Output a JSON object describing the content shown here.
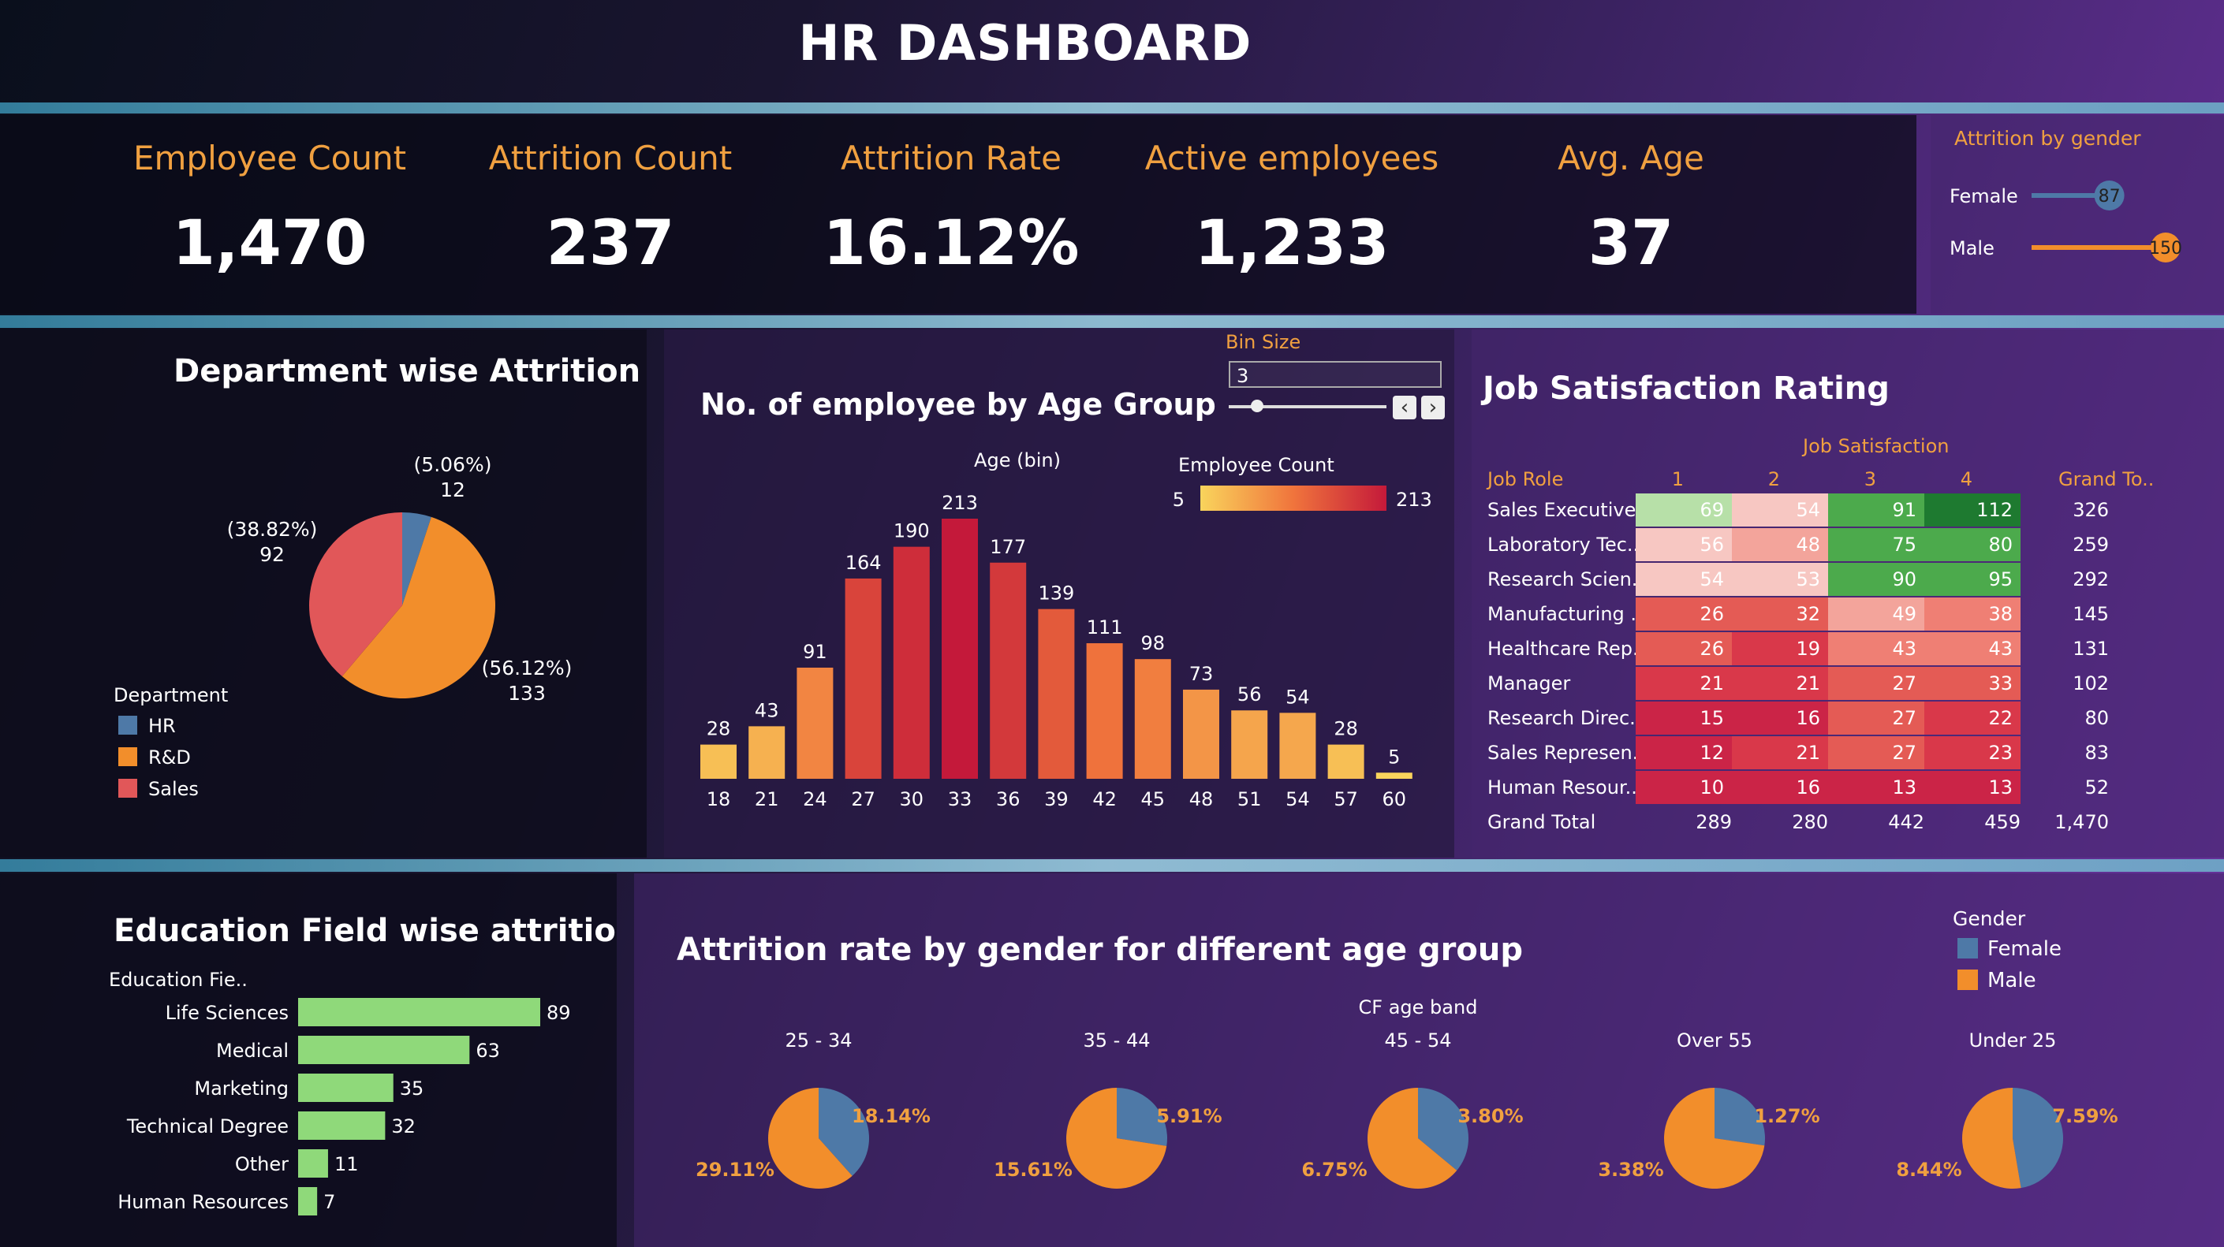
{
  "dashboard_title": "HR DASHBOARD",
  "kpis": [
    {
      "label": "Employee Count",
      "value": "1,470"
    },
    {
      "label": "Attrition Count",
      "value": "237"
    },
    {
      "label": "Attrition Rate",
      "value": "16.12%"
    },
    {
      "label": "Active employees",
      "value": "1,233"
    },
    {
      "label": "Avg. Age",
      "value": "37"
    }
  ],
  "colors": {
    "hr": "#4e79a7",
    "rd": "#f28e2b",
    "sales": "#e15759",
    "female": "#4e79a7",
    "male": "#f28e2b",
    "edu_bar": "#8fd97a",
    "kpi_label": "#f0a040"
  },
  "chart_data": [
    {
      "type": "bar",
      "id": "attrition_by_gender",
      "title": "Attrition  by gender",
      "categories": [
        "Female",
        "Male"
      ],
      "values": [
        87,
        150
      ],
      "max": 150
    },
    {
      "type": "pie",
      "id": "department_attrition",
      "title": "Department wise Attrition",
      "legend_title": "Department",
      "categories": [
        "HR",
        "R&D",
        "Sales"
      ],
      "values": [
        12,
        133,
        92
      ],
      "labels_pct": [
        "(5.06%)",
        "(56.12%)",
        "(38.82%)"
      ],
      "labels_val": [
        "12",
        "133",
        "92"
      ]
    },
    {
      "type": "bar",
      "id": "age_group",
      "title": "No.  of employee by Age Group",
      "xlabel": "Age (bin)",
      "bin_size_label": "Bin Size",
      "bin_size_value": "3",
      "color_legend_title": "Employee Count",
      "color_min": "5",
      "color_max": "213",
      "categories": [
        "18",
        "21",
        "24",
        "27",
        "30",
        "33",
        "36",
        "39",
        "42",
        "45",
        "48",
        "51",
        "54",
        "57",
        "60"
      ],
      "values": [
        28,
        43,
        91,
        164,
        190,
        213,
        177,
        139,
        111,
        98,
        73,
        56,
        54,
        28,
        5
      ]
    },
    {
      "type": "heatmap",
      "id": "job_satisfaction",
      "title": "Job Satisfaction Rating",
      "column_header": "Job Satisfaction",
      "row_header": "Job Role",
      "columns": [
        "1",
        "2",
        "3",
        "4"
      ],
      "total_header": "Grand To..",
      "rows": [
        {
          "role": "Sales Executive",
          "values": [
            69,
            54,
            91,
            112
          ],
          "total": "326"
        },
        {
          "role": "Laboratory Tec..",
          "values": [
            56,
            48,
            75,
            80
          ],
          "total": "259"
        },
        {
          "role": "Research Scien..",
          "values": [
            54,
            53,
            90,
            95
          ],
          "total": "292"
        },
        {
          "role": "Manufacturing ..",
          "values": [
            26,
            32,
            49,
            38
          ],
          "total": "145"
        },
        {
          "role": "Healthcare Rep..",
          "values": [
            26,
            19,
            43,
            43
          ],
          "total": "131"
        },
        {
          "role": "Manager",
          "values": [
            21,
            21,
            27,
            33
          ],
          "total": "102"
        },
        {
          "role": "Research Direc..",
          "values": [
            15,
            16,
            27,
            22
          ],
          "total": "80"
        },
        {
          "role": "Sales Represen..",
          "values": [
            12,
            21,
            27,
            23
          ],
          "total": "83"
        },
        {
          "role": "Human Resour..",
          "values": [
            10,
            16,
            13,
            13
          ],
          "total": "52"
        }
      ],
      "grand_total_label": "Grand Total",
      "grand_totals": [
        "289",
        "280",
        "442",
        "459",
        "1,470"
      ]
    },
    {
      "type": "bar",
      "id": "education_field",
      "title": "Education Field wise attrition",
      "axis_label": "Education Fie..",
      "categories": [
        "Life Sciences",
        "Medical",
        "Marketing",
        "Technical Degree",
        "Other",
        "Human Resources"
      ],
      "values": [
        89,
        63,
        35,
        32,
        11,
        7
      ]
    },
    {
      "type": "pie",
      "id": "gender_age_band",
      "title": "Attrition rate by gender for different age group",
      "band_header": "CF age band",
      "legend_title": "Gender",
      "legend": [
        "Female",
        "Male"
      ],
      "bands": [
        {
          "band": "25 - 34",
          "female": 18.14,
          "male": 29.11,
          "female_label": "18.14%",
          "male_label": "29.11%"
        },
        {
          "band": "35 - 44",
          "female": 5.91,
          "male": 15.61,
          "female_label": "5.91%",
          "male_label": "15.61%"
        },
        {
          "band": "45 - 54",
          "female": 3.8,
          "male": 6.75,
          "female_label": "3.80%",
          "male_label": "6.75%"
        },
        {
          "band": "Over 55",
          "female": 1.27,
          "male": 3.38,
          "female_label": "1.27%",
          "male_label": "3.38%"
        },
        {
          "band": "Under 25",
          "female": 7.59,
          "male": 8.44,
          "female_label": "7.59%",
          "male_label": "8.44%"
        }
      ]
    }
  ]
}
